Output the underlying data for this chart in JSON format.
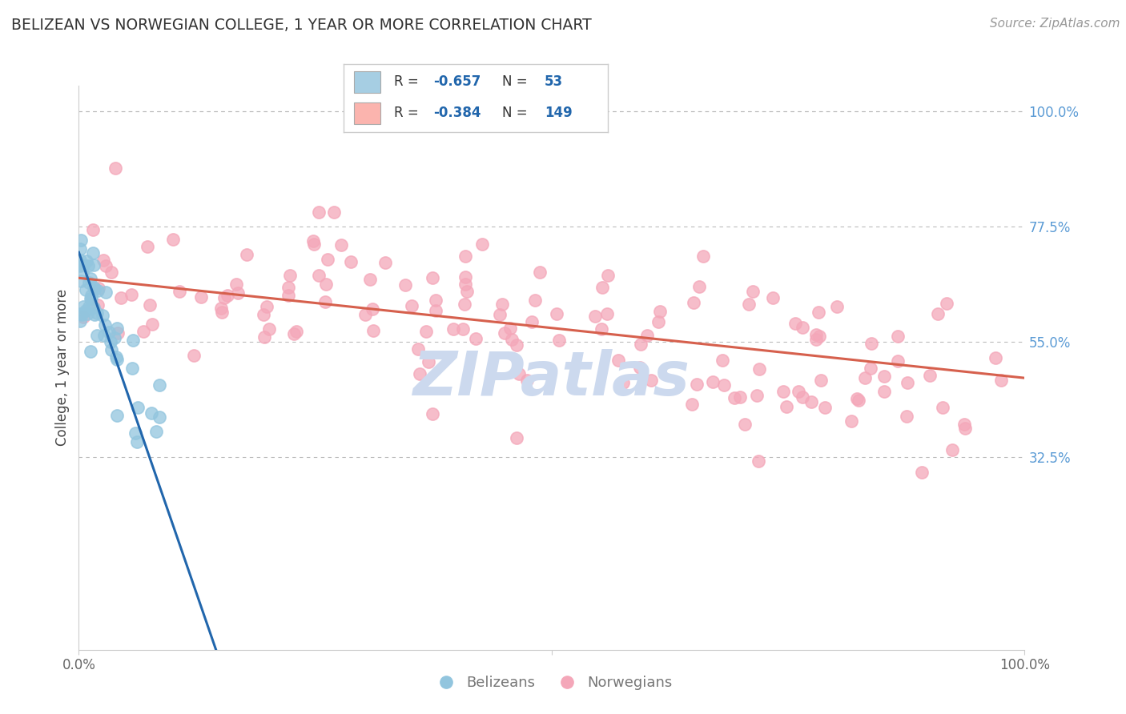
{
  "title": "BELIZEAN VS NORWEGIAN COLLEGE, 1 YEAR OR MORE CORRELATION CHART",
  "source": "Source: ZipAtlas.com",
  "ylabel": "College, 1 year or more",
  "watermark": "ZIPatlas",
  "right_ytick_vals": [
    32.5,
    55.0,
    77.5,
    100.0
  ],
  "right_yticklabels": [
    "32.5%",
    "55.0%",
    "77.5%",
    "100.0%"
  ],
  "blue_color": "#92c5de",
  "blue_edge_color": "#4393c3",
  "pink_color": "#f4a7b9",
  "pink_edge_color": "#d6604d",
  "blue_line_color": "#2166ac",
  "pink_line_color": "#d6604d",
  "background_color": "#ffffff",
  "grid_color": "#bbbbbb",
  "title_color": "#333333",
  "right_label_color": "#5b9bd5",
  "watermark_color": "#ccd9ee",
  "legend_box_blue": "#a6cee3",
  "legend_box_pink": "#fbb4ae",
  "legend_R_color": "#2166ac",
  "legend_N_color": "#2166ac",
  "legend_text_color": "#333333",
  "bottom_legend_color": "#777777",
  "blue_line_x0": 0.0,
  "blue_line_x1": 14.5,
  "blue_line_y0": 72.5,
  "blue_line_y1": -5.0,
  "pink_line_x0": 0.0,
  "pink_line_x1": 100.0,
  "pink_line_y0": 67.5,
  "pink_line_y1": 48.0,
  "xlim": [
    0,
    100
  ],
  "ylim": [
    -5,
    105
  ],
  "xplot_start": 0.0,
  "xplot_end": 100.0
}
